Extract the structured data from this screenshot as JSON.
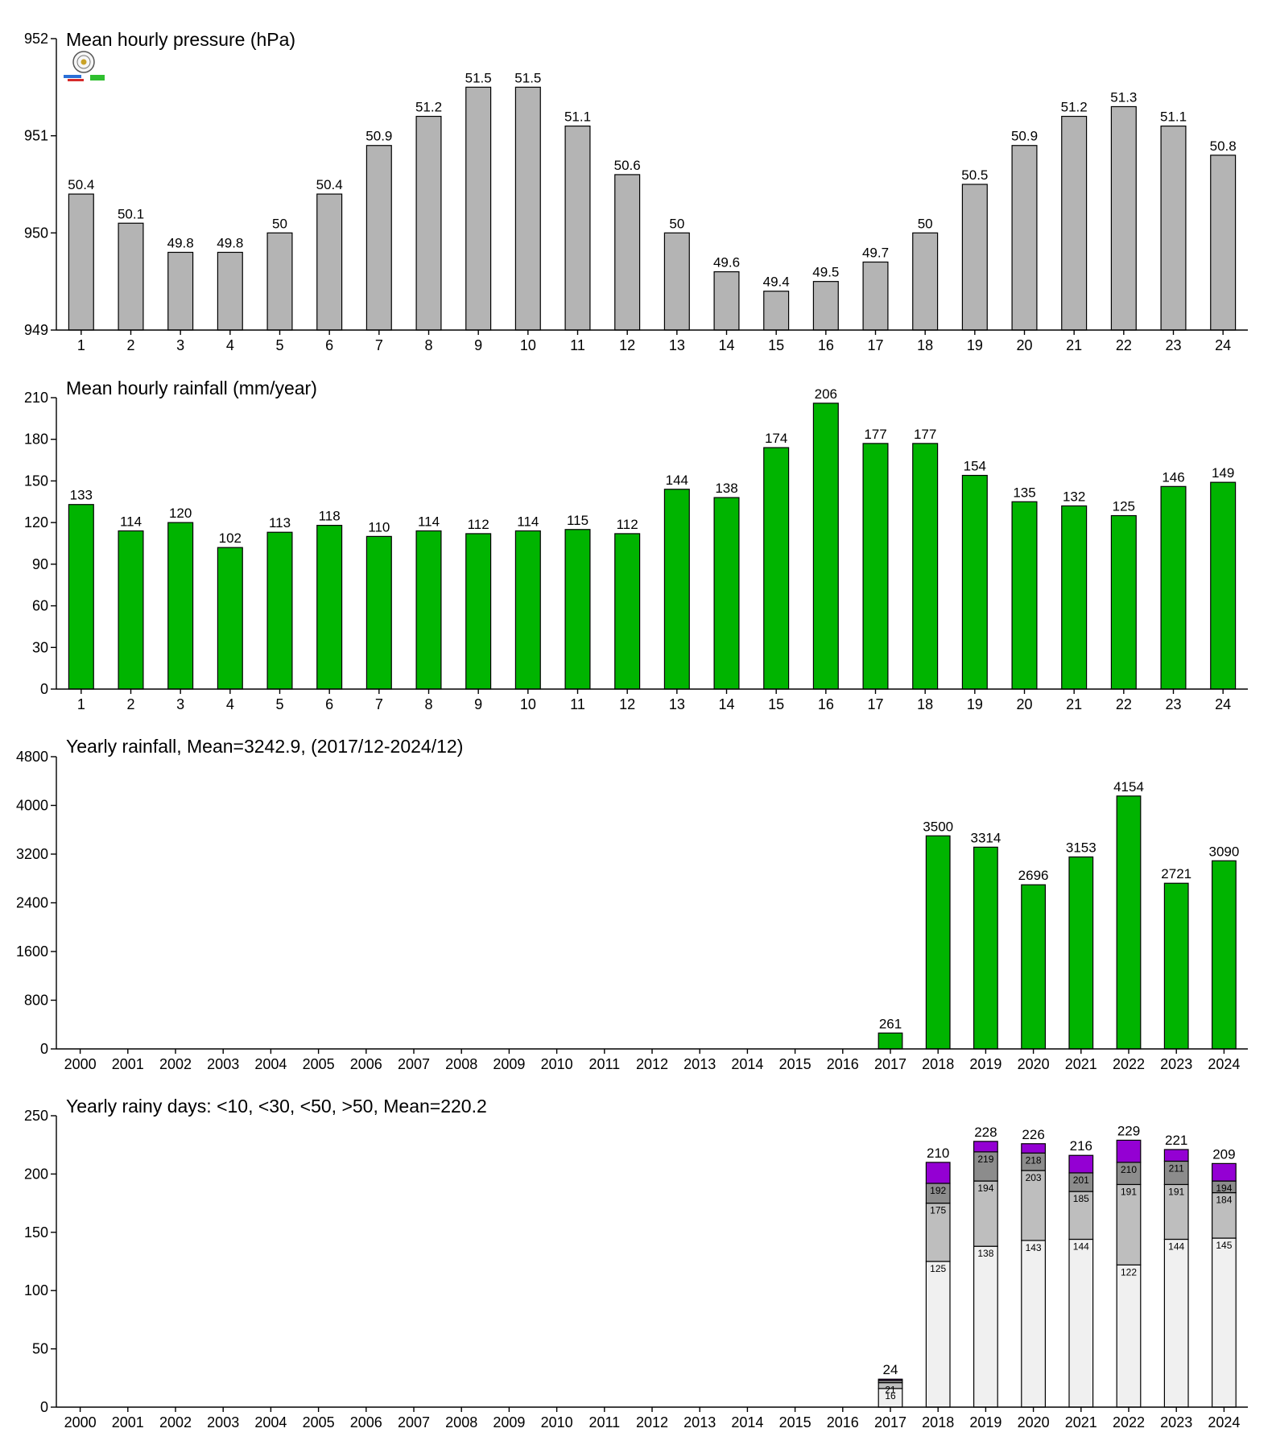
{
  "colors": {
    "gray_bar": "#b4b4b4",
    "green_bar": "#00b400",
    "days_lt10": "#f0f0f0",
    "days_lt30": "#bebebe",
    "days_lt50": "#8c8c8c",
    "days_gt50": "#9400d3"
  },
  "logo_icon": "weather-lab-logo-icon",
  "chart_data": [
    {
      "id": "pressure",
      "type": "bar",
      "title": "Mean hourly pressure (hPa)",
      "categories": [
        "1",
        "2",
        "3",
        "4",
        "5",
        "6",
        "7",
        "8",
        "9",
        "10",
        "11",
        "12",
        "13",
        "14",
        "15",
        "16",
        "17",
        "18",
        "19",
        "20",
        "21",
        "22",
        "23",
        "24"
      ],
      "values": [
        950.4,
        950.1,
        949.8,
        949.8,
        950.0,
        950.4,
        950.9,
        951.2,
        951.5,
        951.5,
        951.1,
        950.6,
        950.0,
        949.6,
        949.4,
        949.5,
        949.7,
        950.0,
        950.5,
        950.9,
        951.2,
        951.3,
        951.1,
        950.8
      ],
      "labels": [
        "50.4",
        "50.1",
        "49.8",
        "49.8",
        "50",
        "50.4",
        "50.9",
        "51.2",
        "51.5",
        "51.5",
        "51.1",
        "50.6",
        "50",
        "49.6",
        "49.4",
        "49.5",
        "49.7",
        "50",
        "50.5",
        "50.9",
        "51.2",
        "51.3",
        "51.1",
        "50.8"
      ],
      "ylim": [
        949,
        952
      ],
      "yticks": [
        "949",
        "950",
        "951",
        "952"
      ],
      "grid": false,
      "color": "#b4b4b4"
    },
    {
      "id": "hourly_rain",
      "type": "bar",
      "title": "Mean hourly rainfall (mm/year)",
      "categories": [
        "1",
        "2",
        "3",
        "4",
        "5",
        "6",
        "7",
        "8",
        "9",
        "10",
        "11",
        "12",
        "13",
        "14",
        "15",
        "16",
        "17",
        "18",
        "19",
        "20",
        "21",
        "22",
        "23",
        "24"
      ],
      "values": [
        133,
        114,
        120,
        102,
        113,
        118,
        110,
        114,
        112,
        114,
        115,
        112,
        144,
        138,
        174,
        206,
        177,
        177,
        154,
        135,
        132,
        125,
        146,
        149
      ],
      "labels": [
        "133",
        "114",
        "120",
        "102",
        "113",
        "118",
        "110",
        "114",
        "112",
        "114",
        "115",
        "112",
        "144",
        "138",
        "174",
        "206",
        "177",
        "177",
        "154",
        "135",
        "132",
        "125",
        "146",
        "149"
      ],
      "ylim": [
        0,
        210
      ],
      "yticks": [
        "0",
        "30",
        "60",
        "90",
        "120",
        "150",
        "180",
        "210"
      ],
      "grid": false,
      "color": "#00b400"
    },
    {
      "id": "yearly_rain",
      "type": "bar",
      "title": "Yearly rainfall, Mean=3242.9, (2017/12-2024/12)",
      "categories": [
        "2000",
        "2001",
        "2002",
        "2003",
        "2004",
        "2005",
        "2006",
        "2007",
        "2008",
        "2009",
        "2010",
        "2011",
        "2012",
        "2013",
        "2014",
        "2015",
        "2016",
        "2017",
        "2018",
        "2019",
        "2020",
        "2021",
        "2022",
        "2023",
        "2024"
      ],
      "values": [
        null,
        null,
        null,
        null,
        null,
        null,
        null,
        null,
        null,
        null,
        null,
        null,
        null,
        null,
        null,
        null,
        null,
        261,
        3500,
        3314,
        2696,
        3153,
        4154,
        2721,
        3090
      ],
      "labels": [
        "",
        "",
        "",
        "",
        "",
        "",
        "",
        "",
        "",
        "",
        "",
        "",
        "",
        "",
        "",
        "",
        "",
        "261",
        "3500",
        "3314",
        "2696",
        "3153",
        "4154",
        "2721",
        "3090"
      ],
      "ylim": [
        0,
        4800
      ],
      "yticks": [
        "0",
        "800",
        "1600",
        "2400",
        "3200",
        "4000",
        "4800"
      ],
      "grid": false,
      "color": "#00b400"
    },
    {
      "id": "rainy_days",
      "type": "bar",
      "title": "Yearly rainy days: <10, <30, <50, >50, Mean=220.2",
      "categories": [
        "2000",
        "2001",
        "2002",
        "2003",
        "2004",
        "2005",
        "2006",
        "2007",
        "2008",
        "2009",
        "2010",
        "2011",
        "2012",
        "2013",
        "2014",
        "2015",
        "2016",
        "2017",
        "2018",
        "2019",
        "2020",
        "2021",
        "2022",
        "2023",
        "2024"
      ],
      "stacked": true,
      "series": [
        {
          "name": "<10",
          "cumulative": [
            null,
            null,
            null,
            null,
            null,
            null,
            null,
            null,
            null,
            null,
            null,
            null,
            null,
            null,
            null,
            null,
            null,
            16,
            125,
            138,
            143,
            144,
            122,
            144,
            145
          ]
        },
        {
          "name": "<30",
          "cumulative": [
            null,
            null,
            null,
            null,
            null,
            null,
            null,
            null,
            null,
            null,
            null,
            null,
            null,
            null,
            null,
            null,
            null,
            21,
            175,
            194,
            203,
            185,
            191,
            191,
            184
          ]
        },
        {
          "name": "<50",
          "cumulative": [
            null,
            null,
            null,
            null,
            null,
            null,
            null,
            null,
            null,
            null,
            null,
            null,
            null,
            null,
            null,
            null,
            null,
            23,
            192,
            219,
            218,
            201,
            210,
            211,
            194
          ]
        },
        {
          "name": ">50",
          "cumulative": [
            null,
            null,
            null,
            null,
            null,
            null,
            null,
            null,
            null,
            null,
            null,
            null,
            null,
            null,
            null,
            null,
            null,
            24,
            210,
            228,
            226,
            216,
            229,
            221,
            209
          ]
        }
      ],
      "segment_labels": [
        [
          "",
          "",
          "",
          "",
          "",
          "",
          "",
          "",
          "",
          "",
          "",
          "",
          "",
          "",
          "",
          "",
          "",
          "16",
          "125",
          "138",
          "143",
          "144",
          "122",
          "144",
          "145"
        ],
        [
          "",
          "",
          "",
          "",
          "",
          "",
          "",
          "",
          "",
          "",
          "",
          "",
          "",
          "",
          "",
          "",
          "",
          "21",
          "175",
          "194",
          "203",
          "185",
          "191",
          "191",
          "184"
        ],
        [
          "",
          "",
          "",
          "",
          "",
          "",
          "",
          "",
          "",
          "",
          "",
          "",
          "",
          "",
          "",
          "",
          "",
          "",
          "192",
          "219",
          "218",
          "201",
          "210",
          "211",
          "194"
        ]
      ],
      "totals": [
        "",
        "",
        "",
        "",
        "",
        "",
        "",
        "",
        "",
        "",
        "",
        "",
        "",
        "",
        "",
        "",
        "",
        "24",
        "210",
        "228",
        "226",
        "216",
        "229",
        "221",
        "209"
      ],
      "ylim": [
        0,
        250
      ],
      "yticks": [
        "0",
        "50",
        "100",
        "150",
        "200",
        "250"
      ],
      "grid": false
    }
  ]
}
